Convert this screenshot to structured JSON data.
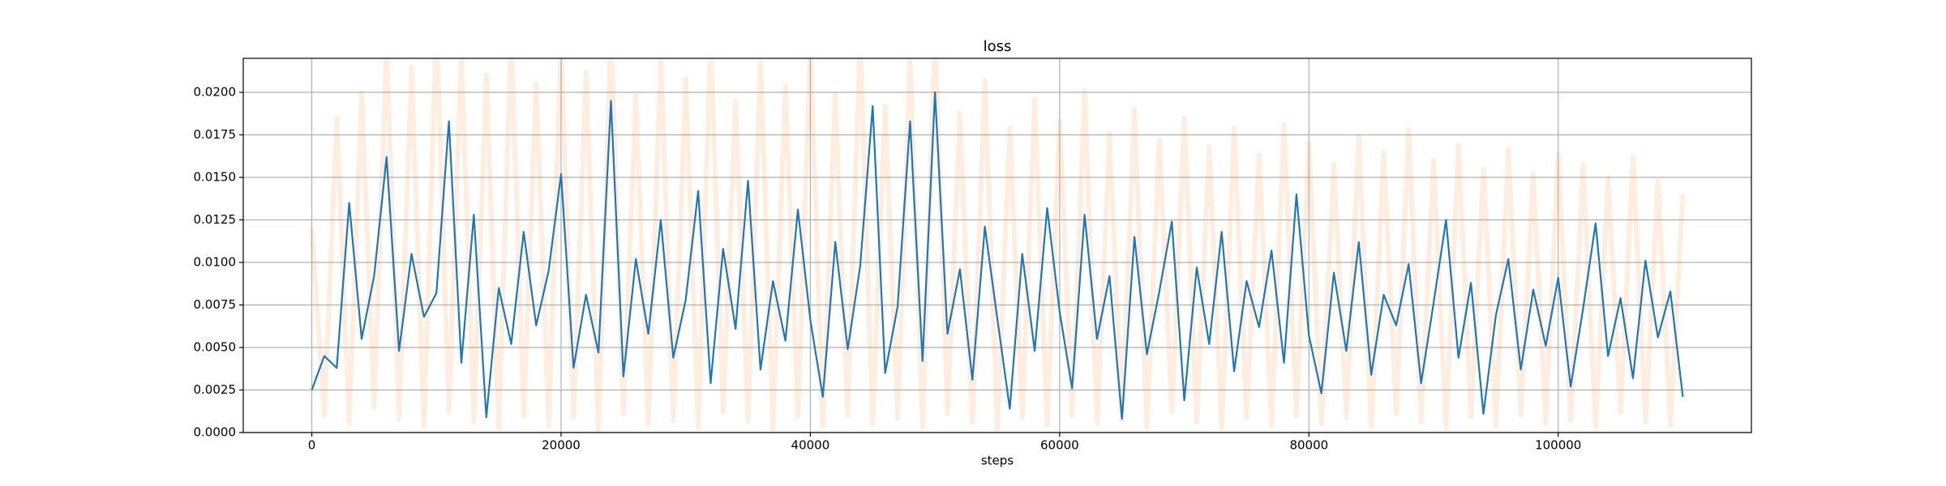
{
  "chart_data": {
    "type": "line",
    "title": "loss",
    "xlabel": "steps",
    "x": [
      0,
      1000,
      2000,
      3000,
      4000,
      5000,
      6000,
      7000,
      8000,
      9000,
      10000,
      11000,
      12000,
      13000,
      14000,
      15000,
      16000,
      17000,
      18000,
      19000,
      20000,
      21000,
      22000,
      23000,
      24000,
      25000,
      26000,
      27000,
      28000,
      29000,
      30000,
      31000,
      32000,
      33000,
      34000,
      35000,
      36000,
      37000,
      38000,
      39000,
      40000,
      41000,
      42000,
      43000,
      44000,
      45000,
      46000,
      47000,
      48000,
      49000,
      50000,
      51000,
      52000,
      53000,
      54000,
      55000,
      56000,
      57000,
      58000,
      59000,
      60000,
      61000,
      62000,
      63000,
      64000,
      65000,
      66000,
      67000,
      68000,
      69000,
      70000,
      71000,
      72000,
      73000,
      74000,
      75000,
      76000,
      77000,
      78000,
      79000,
      80000,
      81000,
      82000,
      83000,
      84000,
      85000,
      86000,
      87000,
      88000,
      89000,
      90000,
      91000,
      92000,
      93000,
      94000,
      95000,
      96000,
      97000,
      98000,
      99000,
      100000,
      101000,
      102000,
      103000,
      104000,
      105000,
      106000,
      107000,
      108000,
      109000,
      110000
    ],
    "series": [
      {
        "color": "#ff7f0e",
        "alpha": 0.13,
        "values": [
          0.012,
          0.001,
          0.0185,
          0.0005,
          0.02,
          0.0015,
          0.023,
          0.0008,
          0.0215,
          0.0003,
          0.024,
          0.0012,
          0.0225,
          0.0006,
          0.021,
          0.0002,
          0.0235,
          0.001,
          0.0205,
          0.0004,
          0.0228,
          0.0009,
          0.0212,
          0.0001,
          0.0238,
          0.0011,
          0.0198,
          0.0005,
          0.0222,
          0.0007,
          0.0208,
          0.0003,
          0.0231,
          0.0012,
          0.0195,
          0.0006,
          0.0218,
          0.0002,
          0.0204,
          0.0009,
          0.0226,
          0.0004,
          0.0199,
          0.001,
          0.0233,
          0.0005,
          0.0192,
          0.0008,
          0.022,
          0.0003,
          0.0236,
          0.0011,
          0.0188,
          0.0006,
          0.0207,
          0.0002,
          0.0179,
          0.0009,
          0.0196,
          0.0004,
          0.0183,
          0.001,
          0.0201,
          0.0005,
          0.0176,
          0.0007,
          0.019,
          0.0003,
          0.0172,
          0.0012,
          0.0185,
          0.0006,
          0.0168,
          0.0002,
          0.0179,
          0.0009,
          0.0163,
          0.0004,
          0.0181,
          0.001,
          0.017,
          0.0005,
          0.0158,
          0.0008,
          0.0174,
          0.0003,
          0.0165,
          0.0011,
          0.0178,
          0.0006,
          0.016,
          0.0002,
          0.0169,
          0.0009,
          0.0155,
          0.0004,
          0.0167,
          0.001,
          0.0152,
          0.0005,
          0.0164,
          0.0007,
          0.0158,
          0.0003,
          0.015,
          0.0012,
          0.0162,
          0.0006,
          0.0148,
          0.0004,
          0.014
        ]
      },
      {
        "color": "#1f77b4",
        "alpha": 1,
        "values": [
          0.0025,
          0.0045,
          0.0038,
          0.0135,
          0.0055,
          0.0092,
          0.0162,
          0.0048,
          0.0105,
          0.0068,
          0.0082,
          0.0183,
          0.0041,
          0.0128,
          0.0009,
          0.0085,
          0.0052,
          0.0118,
          0.0063,
          0.0095,
          0.0152,
          0.0038,
          0.0081,
          0.0047,
          0.0195,
          0.0033,
          0.0102,
          0.0058,
          0.0125,
          0.0044,
          0.0078,
          0.0142,
          0.0029,
          0.0108,
          0.0061,
          0.0148,
          0.0037,
          0.0089,
          0.0054,
          0.0131,
          0.0066,
          0.0021,
          0.0112,
          0.0049,
          0.0098,
          0.0192,
          0.0035,
          0.0074,
          0.0183,
          0.0042,
          0.02,
          0.0058,
          0.0096,
          0.0031,
          0.0121,
          0.0067,
          0.0014,
          0.0105,
          0.0048,
          0.0132,
          0.0071,
          0.0026,
          0.0128,
          0.0055,
          0.0092,
          0.0008,
          0.0115,
          0.0046,
          0.0083,
          0.0124,
          0.0019,
          0.0097,
          0.0052,
          0.0118,
          0.0036,
          0.0089,
          0.0062,
          0.0107,
          0.0041,
          0.014,
          0.0057,
          0.0023,
          0.0094,
          0.0048,
          0.0112,
          0.0034,
          0.0081,
          0.0063,
          0.0099,
          0.0029,
          0.0076,
          0.0125,
          0.0044,
          0.0088,
          0.0011,
          0.0069,
          0.0102,
          0.0037,
          0.0084,
          0.0051,
          0.0091,
          0.0027,
          0.0073,
          0.0123,
          0.0045,
          0.0079,
          0.0032,
          0.0101,
          0.0056,
          0.0083,
          0.0021
        ]
      }
    ],
    "xlim": [
      -5500,
      115500
    ],
    "xticks": [
      0,
      20000,
      40000,
      60000,
      80000,
      100000
    ],
    "ylim": [
      0,
      0.022
    ],
    "yticks": [
      {
        "value": 0,
        "label": "0.0000"
      },
      {
        "value": 0.0025,
        "label": "0.0025"
      },
      {
        "value": 0.005,
        "label": "0.0050"
      },
      {
        "value": 0.0075,
        "label": "0.0075"
      },
      {
        "value": 0.01,
        "label": "0.0100"
      },
      {
        "value": 0.0125,
        "label": "0.0125"
      },
      {
        "value": 0.015,
        "label": "0.0150"
      },
      {
        "value": 0.0175,
        "label": "0.0175"
      },
      {
        "value": 0.02,
        "label": "0.0200"
      }
    ],
    "grid": true
  }
}
